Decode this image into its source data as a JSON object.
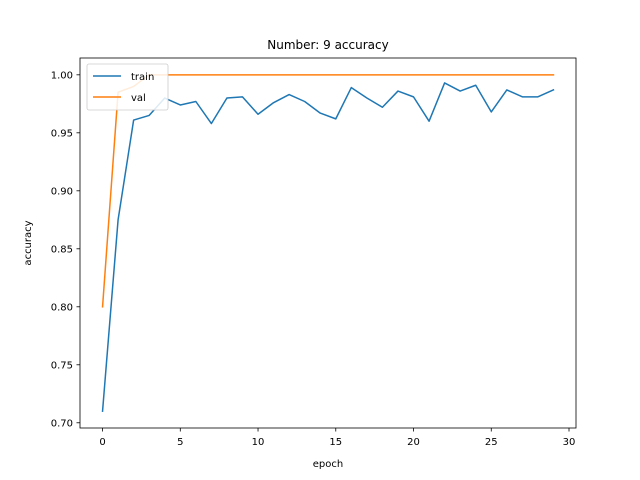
{
  "chart_data": {
    "type": "line",
    "title": "Number: 9 accuracy",
    "xlabel": "epoch",
    "ylabel": "accuracy",
    "xlim": [
      -1.45,
      30.45
    ],
    "ylim": [
      0.6955,
      1.0145
    ],
    "xticks": [
      0,
      5,
      10,
      15,
      20,
      25,
      30
    ],
    "yticks": [
      0.7,
      0.75,
      0.8,
      0.85,
      0.9,
      0.95,
      1.0
    ],
    "ytick_labels": [
      "0.70",
      "0.75",
      "0.80",
      "0.85",
      "0.90",
      "0.95",
      "1.00"
    ],
    "grid": false,
    "legend_position": "upper-left",
    "x": [
      0,
      1,
      2,
      3,
      4,
      5,
      6,
      7,
      8,
      9,
      10,
      11,
      12,
      13,
      14,
      15,
      16,
      17,
      18,
      19,
      20,
      21,
      22,
      23,
      24,
      25,
      26,
      27,
      28,
      29
    ],
    "series": [
      {
        "name": "train",
        "color": "#1f77b4",
        "values": [
          0.71,
          0.875,
          0.961,
          0.965,
          0.98,
          0.974,
          0.977,
          0.958,
          0.98,
          0.981,
          0.966,
          0.976,
          0.983,
          0.977,
          0.967,
          0.962,
          0.989,
          0.98,
          0.972,
          0.986,
          0.981,
          0.96,
          0.993,
          0.986,
          0.991,
          0.968,
          0.987,
          0.981,
          0.981,
          0.987
        ]
      },
      {
        "name": "val",
        "color": "#ff7f0e",
        "values": [
          0.8,
          0.985,
          0.99,
          1.0,
          1.0,
          1.0,
          1.0,
          1.0,
          1.0,
          1.0,
          1.0,
          1.0,
          1.0,
          1.0,
          1.0,
          1.0,
          1.0,
          1.0,
          1.0,
          1.0,
          1.0,
          1.0,
          1.0,
          1.0,
          1.0,
          1.0,
          1.0,
          1.0,
          1.0,
          1.0
        ]
      }
    ]
  }
}
